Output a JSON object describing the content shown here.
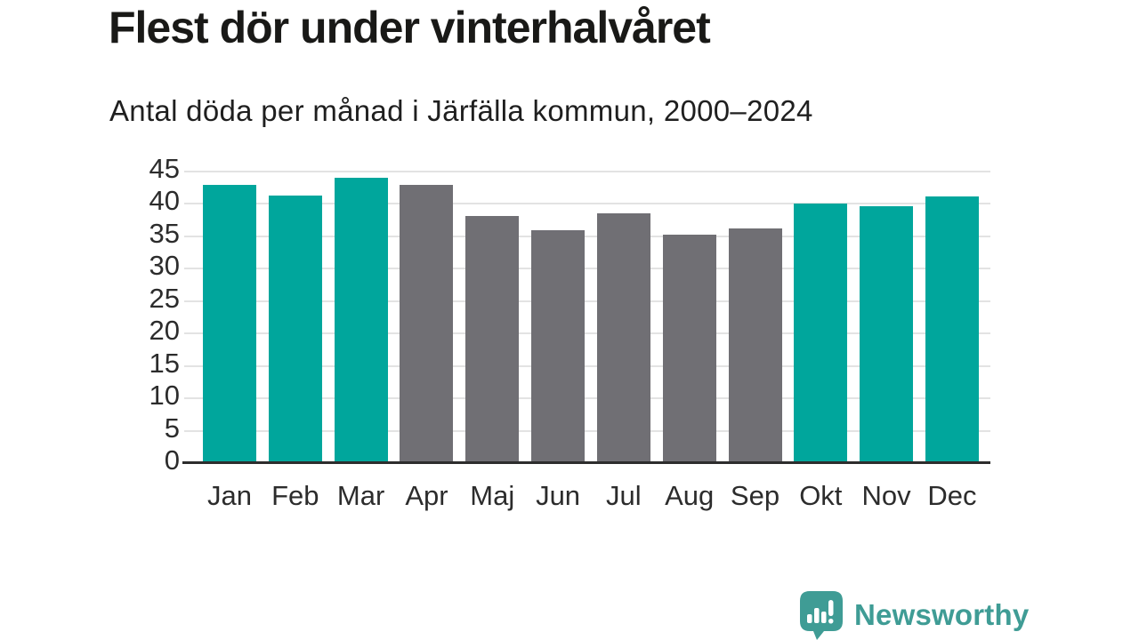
{
  "chart_data": {
    "type": "bar",
    "title": "Flest dör under vinterhalvåret",
    "subtitle": "Antal döda per månad i Järfälla kommun, 2000–2024",
    "categories": [
      "Jan",
      "Feb",
      "Mar",
      "Apr",
      "Maj",
      "Jun",
      "Jul",
      "Aug",
      "Sep",
      "Okt",
      "Nov",
      "Dec"
    ],
    "values": [
      43.0,
      41.3,
      44.0,
      42.9,
      38.2,
      36.0,
      38.5,
      35.2,
      36.2,
      40.0,
      39.6,
      41.2
    ],
    "bar_colors": [
      "#00A69C",
      "#00A69C",
      "#00A69C",
      "#706F74",
      "#706F74",
      "#706F74",
      "#706F74",
      "#706F74",
      "#706F74",
      "#00A69C",
      "#00A69C",
      "#00A69C"
    ],
    "palette": {
      "winter_half_year": "#00A69C",
      "summer_half_year": "#706F74"
    },
    "xlabel": "",
    "ylabel": "",
    "ylim": [
      0,
      45
    ],
    "yticks": [
      0,
      5,
      10,
      15,
      20,
      25,
      30,
      35,
      40,
      45
    ],
    "grid": true,
    "legend_position": "none"
  },
  "footer": {
    "brand_name": "Newsworthy",
    "brand_color": "#3F9C95",
    "logo_icon": "bar-chart-speech-bubble-icon"
  }
}
